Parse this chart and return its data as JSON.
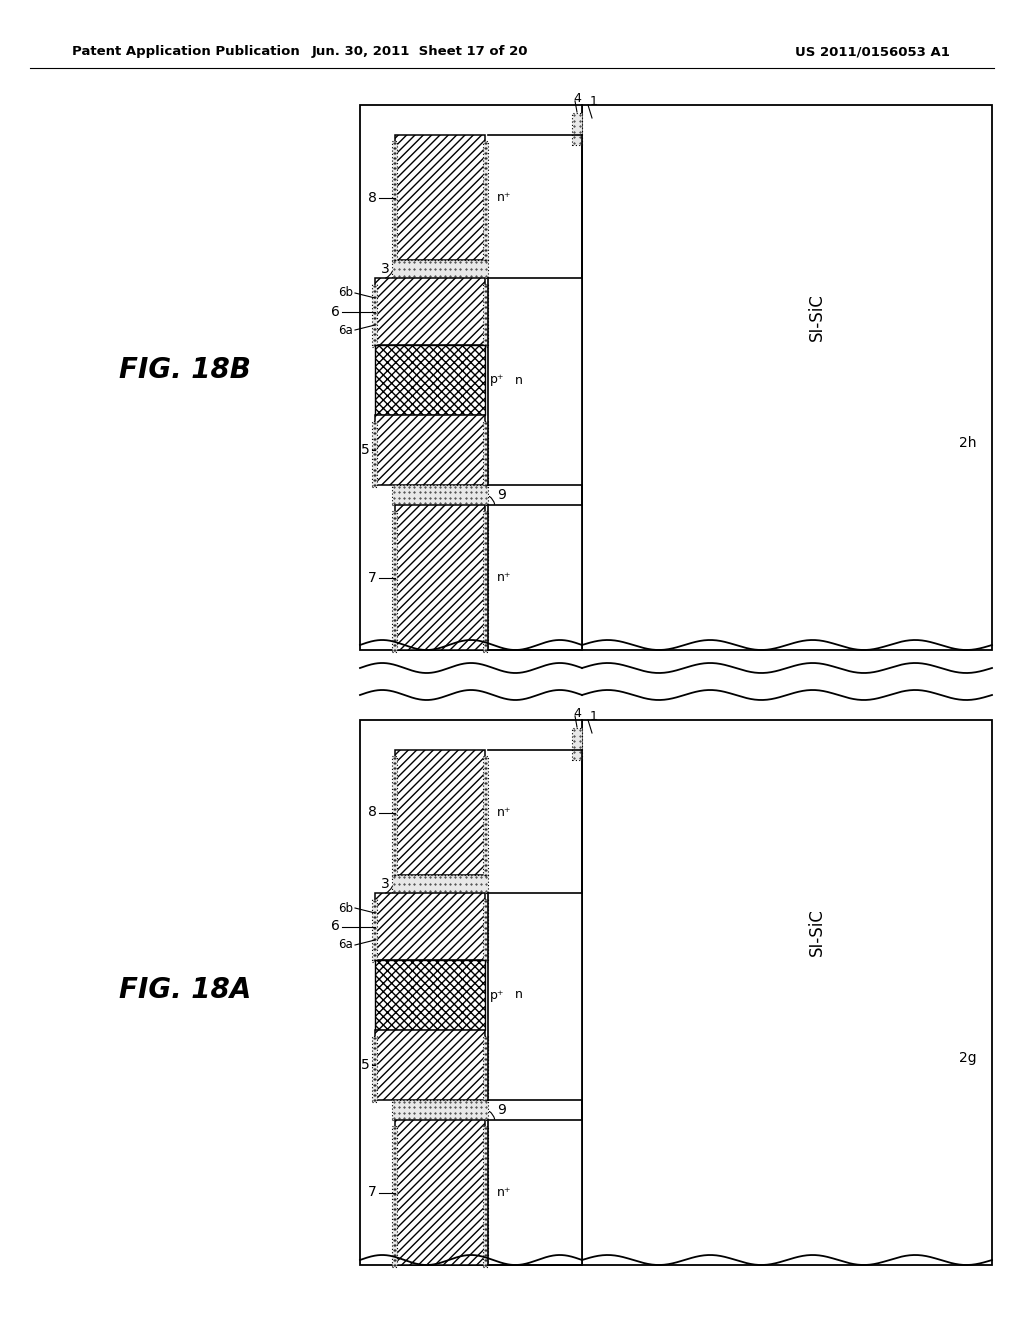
{
  "header_left": "Patent Application Publication",
  "header_mid": "Jun. 30, 2011  Sheet 17 of 20",
  "header_right": "US 2011/0156053 A1",
  "fig_A_label": "FIG. 18A",
  "fig_B_label": "FIG. 18B",
  "background": "#ffffff",
  "line_color": "#000000"
}
